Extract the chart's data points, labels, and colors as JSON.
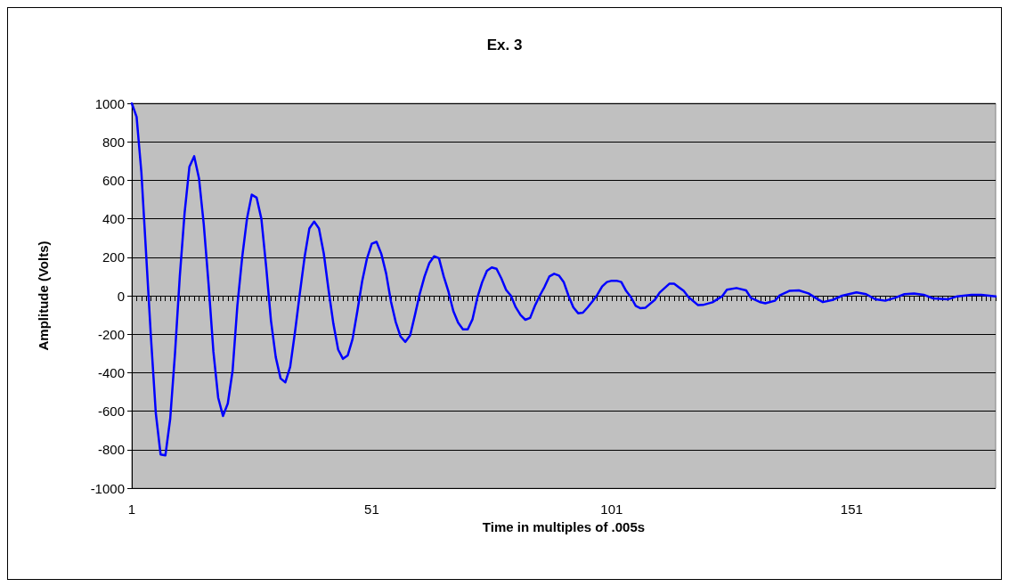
{
  "chart_data": {
    "type": "line",
    "title": "Ex. 3",
    "xlabel": "Time in multiples of .005s",
    "ylabel": "Amplitude (Volts)",
    "x": [
      1,
      2,
      3,
      4,
      5,
      6,
      7,
      8,
      9,
      10,
      11,
      12,
      13,
      14,
      15,
      16,
      17,
      18,
      19,
      20,
      21,
      22,
      23,
      24,
      25,
      26,
      27,
      28,
      29,
      30,
      31,
      32,
      33,
      34,
      35,
      36,
      37,
      38,
      39,
      40,
      41,
      42,
      43,
      44,
      45,
      46,
      47,
      48,
      49,
      50,
      51,
      52,
      53,
      54,
      55,
      56,
      57,
      58,
      59,
      60,
      61,
      62,
      63,
      64,
      65,
      66,
      67,
      68,
      69,
      70,
      71,
      72,
      73,
      74,
      75,
      76,
      77,
      78,
      79,
      80,
      81,
      82,
      83,
      84,
      85,
      86,
      87,
      88,
      89,
      90,
      91,
      92,
      93,
      94,
      95,
      96,
      97,
      98,
      99,
      100,
      101,
      102,
      103,
      104,
      105,
      106,
      107,
      108,
      110,
      111,
      113,
      114,
      116,
      117,
      119,
      120,
      122,
      124,
      125,
      127,
      129,
      130,
      132,
      133,
      135,
      136,
      138,
      140,
      142,
      144,
      145,
      147,
      149,
      152,
      154,
      156,
      158,
      160,
      162,
      164,
      166,
      168,
      171,
      173,
      176,
      178,
      181
    ],
    "series": [
      {
        "color": "#0000ff",
        "values": [
          1000,
          930,
          640,
          210,
          -220,
          -610,
          -825,
          -830,
          -640,
          -300,
          100,
          430,
          670,
          725,
          610,
          370,
          60,
          -290,
          -530,
          -625,
          -560,
          -390,
          -50,
          200,
          400,
          525,
          510,
          400,
          150,
          -130,
          -320,
          -430,
          -450,
          -370,
          -190,
          10,
          200,
          350,
          385,
          350,
          220,
          30,
          -145,
          -280,
          -328,
          -310,
          -225,
          -80,
          75,
          193,
          270,
          280,
          217,
          115,
          -30,
          -137,
          -212,
          -240,
          -206,
          -100,
          10,
          100,
          170,
          205,
          195,
          100,
          20,
          -80,
          -140,
          -175,
          -175,
          -122,
          -10,
          70,
          130,
          147,
          140,
          90,
          30,
          0,
          -60,
          -100,
          -125,
          -115,
          -52,
          0,
          46,
          100,
          114,
          105,
          71,
          0,
          -60,
          -91,
          -88,
          -60,
          -29,
          5,
          48,
          71,
          78,
          78,
          71,
          25,
          -7,
          -53,
          -65,
          -63,
          -21,
          17,
          62,
          62,
          25,
          -7,
          -49,
          -48,
          -34,
          -3,
          31,
          40,
          28,
          -11,
          -34,
          -39,
          -26,
          2,
          25,
          28,
          12,
          -19,
          -33,
          -22,
          0,
          17,
          8,
          -19,
          -26,
          -11,
          8,
          12,
          5,
          -14,
          -19,
          -3,
          5,
          5,
          -3
        ]
      }
    ],
    "xlim": [
      1,
      181
    ],
    "xticks": [
      1,
      51,
      101,
      151
    ],
    "ylim": [
      -1000,
      1000
    ],
    "yticks": [
      -1000,
      -800,
      -600,
      -400,
      -200,
      0,
      200,
      400,
      600,
      800,
      1000
    ],
    "grid": "y",
    "marker": "none",
    "line_style": "solid"
  }
}
